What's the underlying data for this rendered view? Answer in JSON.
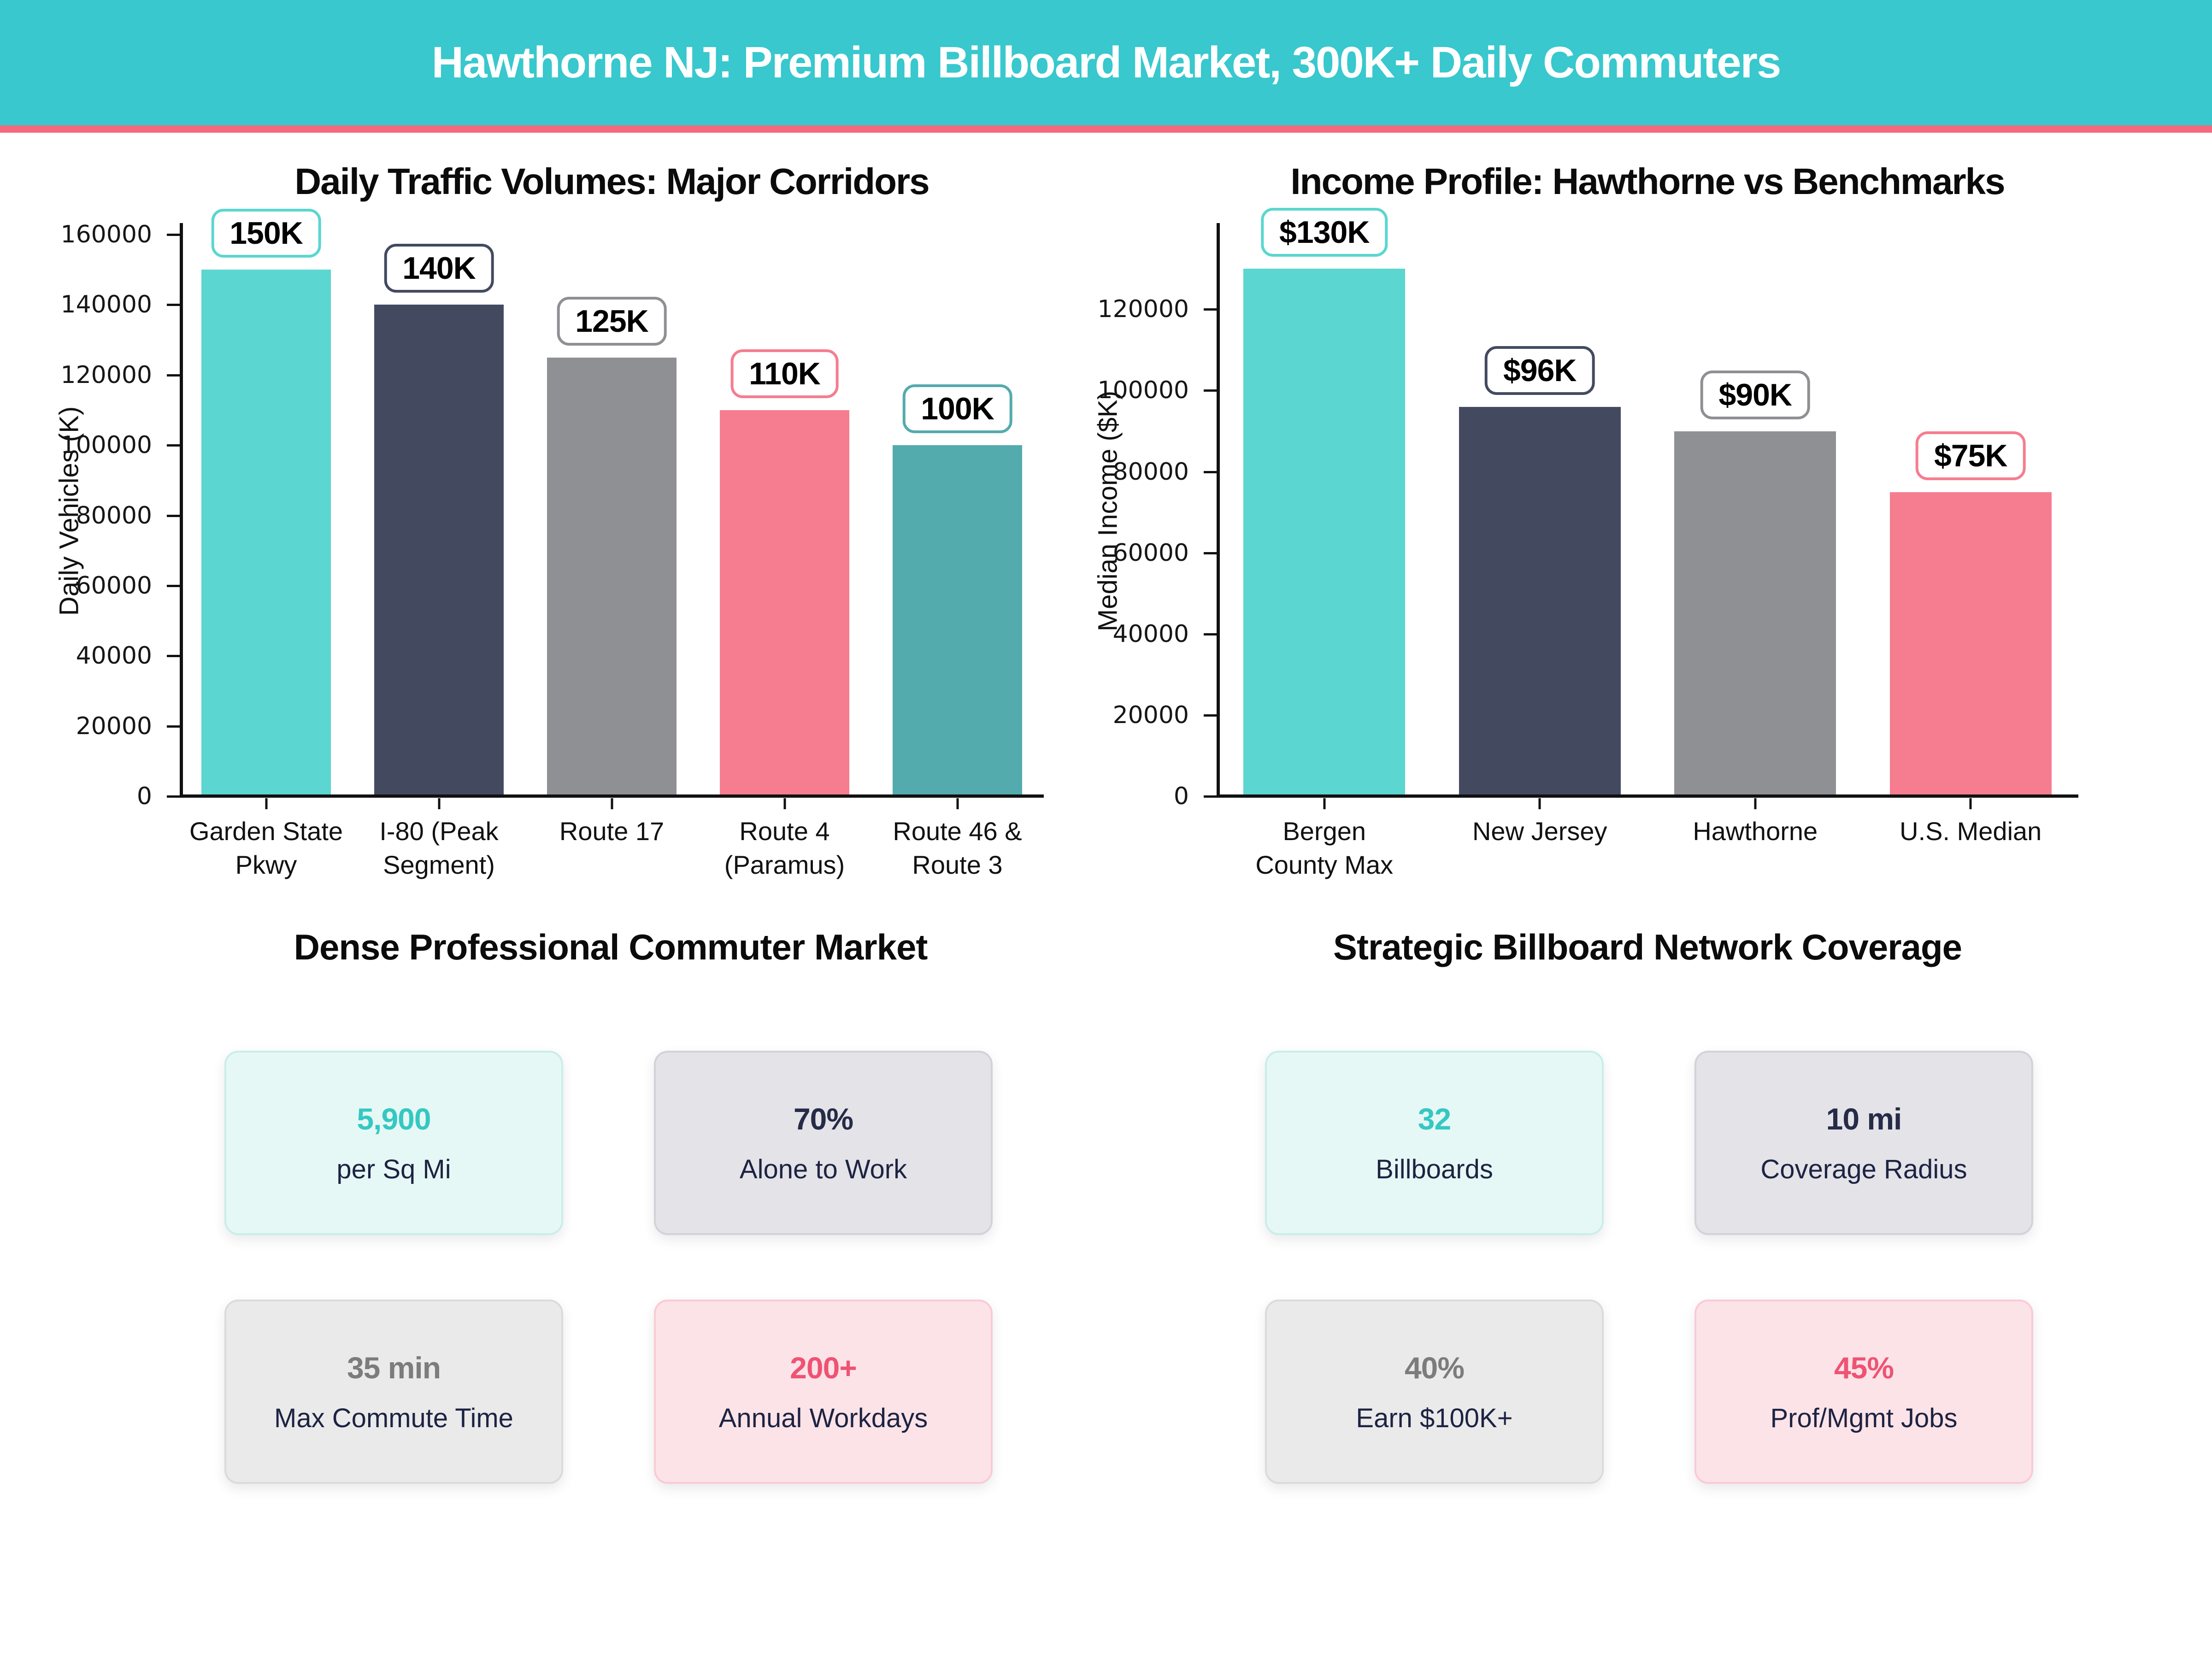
{
  "header": {
    "title": "Hawthorne NJ: Premium Billboard Market, 300K+ Daily Commuters",
    "bg_color": "#38C8CD",
    "accent_color": "#F5697E"
  },
  "chart_data": [
    {
      "type": "bar",
      "title": "Daily Traffic Volumes: Major Corridors",
      "xlabel": "",
      "ylabel": "Daily Vehicles (K)",
      "categories": [
        "Garden State\nPkwy",
        "I-80 (Peak\nSegment)",
        "Route 17",
        "Route 4\n(Paramus)",
        "Route 46 &\nRoute 3"
      ],
      "values": [
        150000,
        140000,
        125000,
        110000,
        100000
      ],
      "bar_labels": [
        "150K",
        "140K",
        "125K",
        "110K",
        "100K"
      ],
      "bar_colors": [
        "#5BD6D0",
        "#434A60",
        "#8F9093",
        "#F57D8F",
        "#54ABAD"
      ],
      "yticks": [
        0,
        20000,
        40000,
        60000,
        80000,
        100000,
        120000,
        140000,
        160000
      ],
      "ylim": [
        0,
        162500
      ],
      "grid": false,
      "legend": null
    },
    {
      "type": "bar",
      "title": "Income Profile: Hawthorne vs Benchmarks",
      "xlabel": "",
      "ylabel": "Median Income ($K)",
      "categories": [
        "Bergen\nCounty Max",
        "New Jersey",
        "Hawthorne",
        "U.S. Median"
      ],
      "values": [
        130000,
        96000,
        90000,
        75000
      ],
      "bar_labels": [
        "$130K",
        "$96K",
        "$90K",
        "$75K"
      ],
      "bar_colors": [
        "#5BD6D0",
        "#434A60",
        "#8F9093",
        "#F57D8F"
      ],
      "yticks": [
        0,
        20000,
        40000,
        60000,
        80000,
        100000,
        120000
      ],
      "ylim": [
        0,
        140600
      ],
      "grid": false,
      "legend": null
    }
  ],
  "sections": [
    {
      "title": "Dense Professional Commuter Market",
      "cards": [
        {
          "value": "5,900",
          "label": "per Sq Mi",
          "bg": "#E6F8F5",
          "border": "#C9EEE7",
          "value_color": "#35C8C2"
        },
        {
          "value": "70%",
          "label": "Alone to Work",
          "bg": "#E3E3E8",
          "border": "#D2D2D8",
          "value_color": "#262B47"
        },
        {
          "value": "35 min",
          "label": "Max Commute Time",
          "bg": "#EAEAEA",
          "border": "#DBDBDB",
          "value_color": "#7C7C7C"
        },
        {
          "value": "200+",
          "label": "Annual Workdays",
          "bg": "#FCE3E8",
          "border": "#F9CBD4",
          "value_color": "#EE5373"
        }
      ]
    },
    {
      "title": "Strategic Billboard Network Coverage",
      "cards": [
        {
          "value": "32",
          "label": "Billboards",
          "bg": "#E6F8F5",
          "border": "#C9EEE7",
          "value_color": "#35C8C2"
        },
        {
          "value": "10 mi",
          "label": "Coverage Radius",
          "bg": "#E3E3E8",
          "border": "#D2D2D8",
          "value_color": "#262B47"
        },
        {
          "value": "40%",
          "label": "Earn $100K+",
          "bg": "#EAEAEA",
          "border": "#DBDBDB",
          "value_color": "#7C7C7C"
        },
        {
          "value": "45%",
          "label": "Prof/Mgmt Jobs",
          "bg": "#FCE3E8",
          "border": "#F9CBD4",
          "value_color": "#EE5373"
        }
      ]
    }
  ],
  "card_label_color": "#1D2342",
  "text_color": "#111111"
}
